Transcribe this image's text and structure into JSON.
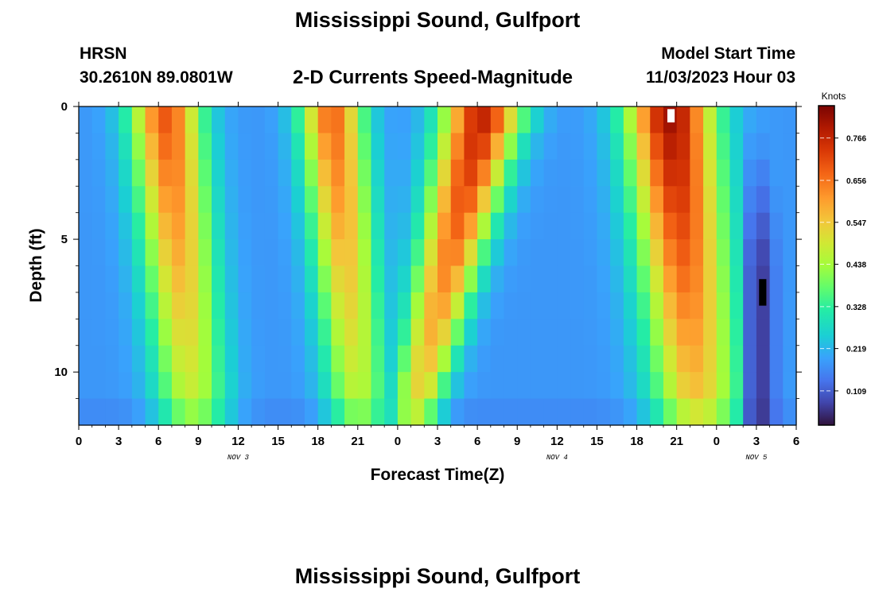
{
  "header": {
    "title": "Mississippi Sound, Gulfport",
    "station": "HRSN",
    "coords": "30.2610N  89.0801W",
    "product": "2-D Currents Speed-Magnitude",
    "model_label": "Model Start Time",
    "model_time": "11/03/2023 Hour 03"
  },
  "footer": {
    "title": "Mississippi Sound, Gulfport"
  },
  "chart_data": {
    "type": "heatmap",
    "title": "2-D Currents Speed-Magnitude",
    "xlabel": "Forecast Time(Z)",
    "ylabel": "Depth (ft)",
    "ylim": [
      12,
      0
    ],
    "xlim": [
      0,
      54
    ],
    "x_tick_labels": [
      "0",
      "3",
      "6",
      "9",
      "12",
      "15",
      "18",
      "21",
      "0",
      "3",
      "6",
      "9",
      "12",
      "15",
      "18",
      "21",
      "0",
      "3",
      "6"
    ],
    "y_tick_labels": [
      "0",
      "5",
      "10"
    ],
    "date_labels": [
      "NOV 3",
      "NOV 4",
      "NOV 5"
    ],
    "colorbar": {
      "label": "Knots",
      "ticks": [
        "0.766",
        "0.656",
        "0.547",
        "0.438",
        "0.328",
        "0.219",
        "0.109"
      ],
      "range": [
        0.02,
        0.85
      ]
    },
    "depths_ft": [
      0,
      1,
      2,
      3,
      4,
      5,
      6,
      7,
      8,
      9,
      10,
      11
    ],
    "hours": [
      0,
      1,
      2,
      3,
      4,
      5,
      6,
      7,
      8,
      9,
      10,
      11,
      12,
      13,
      14,
      15,
      16,
      17,
      18,
      19,
      20,
      21,
      22,
      23,
      24,
      25,
      26,
      27,
      28,
      29,
      30,
      31,
      32,
      33,
      34,
      35,
      36,
      37,
      38,
      39,
      40,
      41,
      42,
      43,
      44,
      45,
      46,
      47,
      48,
      49,
      50,
      51,
      52,
      53
    ],
    "description": "current speed (knots) by forecast hour and depth"
  }
}
